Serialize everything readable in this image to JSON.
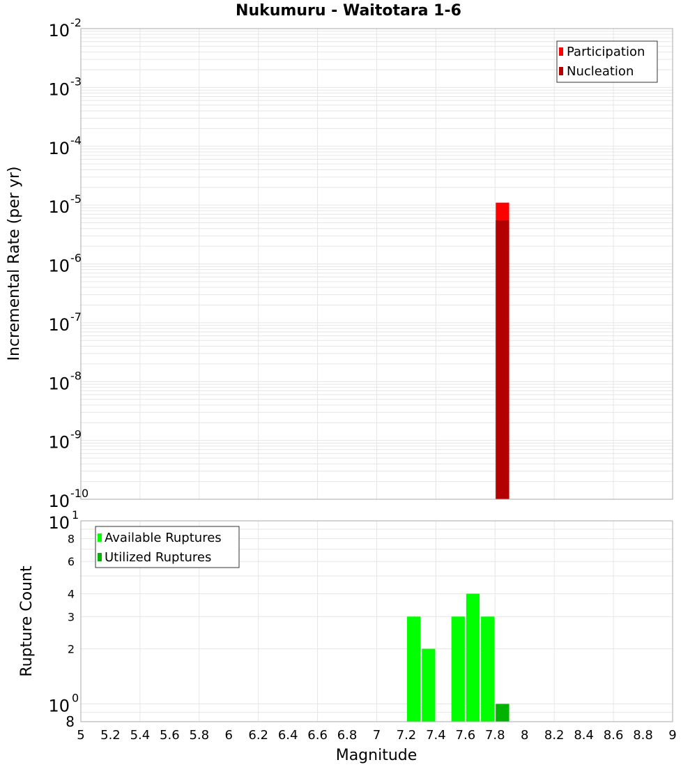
{
  "chart_data": [
    {
      "type": "bar",
      "title": "Nukumuru - Waitotara 1-6",
      "xlabel": "Magnitude",
      "ylabel": "Incremental Rate (per yr)",
      "yscale": "log",
      "ylim": [
        1e-10,
        0.01
      ],
      "xlim": [
        5,
        9
      ],
      "grid": true,
      "legend_position": "top-right",
      "y_ticks": [
        "10^-2",
        "10^-3",
        "10^-4",
        "10^-5",
        "10^-6",
        "10^-7",
        "10^-8",
        "10^-9",
        "10^-10"
      ],
      "series": [
        {
          "name": "Participation",
          "color": "#ff0000",
          "x": [
            7.85
          ],
          "values": [
            1.1e-05
          ]
        },
        {
          "name": "Nucleation",
          "color": "#b30000",
          "x": [
            7.85
          ],
          "values": [
            5.5e-06
          ]
        }
      ]
    },
    {
      "type": "bar",
      "xlabel": "Magnitude",
      "ylabel": "Rupture Count",
      "yscale": "log",
      "ylim": [
        0.8,
        10
      ],
      "xlim": [
        5,
        9
      ],
      "grid": true,
      "legend_position": "top-left",
      "y_ticks": [
        "10^1",
        "8",
        "6",
        "4",
        "3",
        "2",
        "10^0",
        "8"
      ],
      "x_ticks": [
        "5",
        "5.2",
        "5.4",
        "5.6",
        "5.8",
        "6",
        "6.2",
        "6.4",
        "6.6",
        "6.8",
        "7",
        "7.2",
        "7.4",
        "7.6",
        "7.8",
        "8",
        "8.2",
        "8.4",
        "8.6",
        "8.8",
        "9"
      ],
      "series": [
        {
          "name": "Available Ruptures",
          "color": "#00ff00",
          "x": [
            7.25,
            7.35,
            7.55,
            7.65,
            7.75,
            7.85
          ],
          "values": [
            3,
            2,
            3,
            4,
            3,
            1
          ]
        },
        {
          "name": "Utilized Ruptures",
          "color": "#00b300",
          "x": [
            7.85
          ],
          "values": [
            1
          ]
        }
      ]
    }
  ],
  "labels": {
    "title": "Nukumuru - Waitotara 1-6",
    "top_ylabel": "Incremental Rate (per yr)",
    "bottom_ylabel": "Rupture Count",
    "xlabel": "Magnitude",
    "legend_top": [
      "Participation",
      "Nucleation"
    ],
    "legend_bottom": [
      "Available Ruptures",
      "Utilized Ruptures"
    ]
  }
}
